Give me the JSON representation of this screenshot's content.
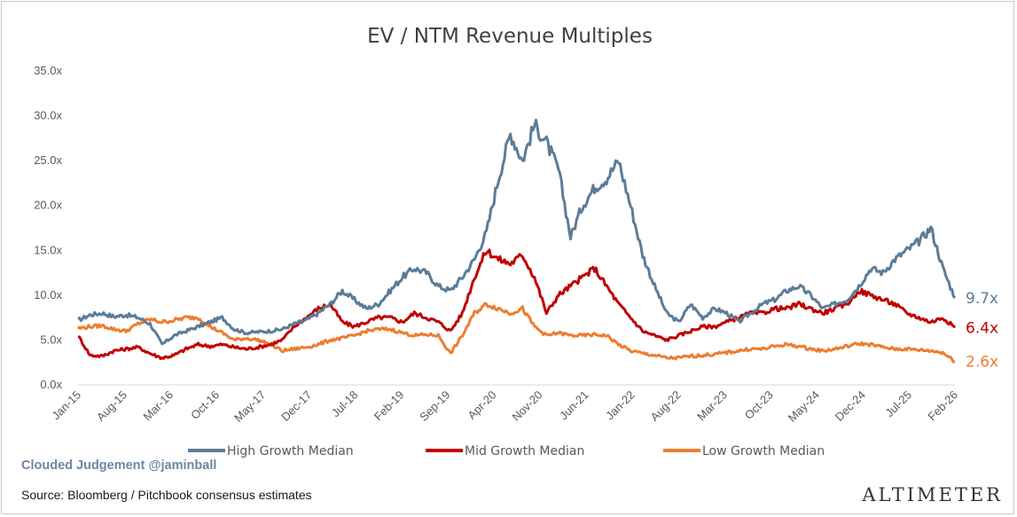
{
  "chart_data": {
    "type": "line",
    "title": "EV / NTM Revenue Multiples",
    "x_tick_labels": [
      "Jan-15",
      "Aug-15",
      "Mar-16",
      "Oct-16",
      "May-17",
      "Dec-17",
      "Jul-18",
      "Feb-19",
      "Sep-19",
      "Apr-20",
      "Nov-20",
      "Jun-21",
      "Jan-22",
      "Aug-22",
      "Mar-23",
      "Oct-23",
      "May-24",
      "Dec-24",
      "Jul-25",
      "Feb-26"
    ],
    "y_tick_labels": [
      "0.0x",
      "5.0x",
      "10.0x",
      "15.0x",
      "20.0x",
      "25.0x",
      "30.0x",
      "35.0x"
    ],
    "ylim": [
      0,
      35
    ],
    "legend_position": "bottom",
    "series": [
      {
        "name": "High Growth Median",
        "color": "#5b7c99",
        "end_label": "9.7x",
        "values": [
          7.2,
          7.8,
          8.0,
          7.6,
          7.8,
          7.5,
          6.8,
          4.5,
          5.5,
          6.0,
          6.5,
          7.0,
          7.5,
          6.2,
          5.8,
          5.9,
          6.0,
          6.2,
          6.8,
          7.2,
          8.0,
          9.0,
          10.5,
          9.5,
          8.5,
          9.0,
          10.5,
          12.0,
          13.0,
          12.5,
          11.0,
          10.5,
          12.0,
          14.0,
          17.0,
          23.0,
          28.0,
          25.0,
          29.0,
          27.0,
          24.0,
          16.5,
          20.0,
          22.0,
          23.0,
          25.0,
          20.0,
          14.5,
          11.0,
          8.0,
          7.0,
          9.0,
          7.5,
          8.5,
          8.0,
          7.0,
          8.0,
          9.0,
          9.5,
          10.5,
          11.0,
          10.0,
          8.5,
          9.0,
          9.5,
          11.0,
          13.0,
          12.5,
          14.0,
          15.0,
          16.0,
          17.5,
          13.0,
          9.7
        ]
      },
      {
        "name": "Mid Growth Median",
        "color": "#c00000",
        "end_label": "6.4x",
        "values": [
          5.5,
          3.3,
          3.2,
          3.8,
          4.0,
          4.2,
          3.5,
          3.0,
          3.3,
          4.0,
          4.5,
          4.3,
          4.5,
          4.2,
          4.0,
          4.2,
          4.5,
          5.0,
          6.5,
          7.5,
          8.5,
          9.0,
          7.0,
          6.5,
          7.0,
          7.5,
          7.5,
          7.0,
          8.0,
          7.5,
          7.0,
          6.0,
          8.0,
          12.0,
          15.0,
          14.0,
          13.5,
          14.5,
          12.0,
          8.0,
          10.0,
          11.0,
          12.0,
          13.0,
          11.0,
          9.0,
          7.5,
          6.0,
          5.5,
          5.0,
          5.5,
          6.0,
          6.5,
          6.5,
          7.0,
          7.5,
          8.0,
          8.0,
          8.5,
          8.5,
          9.0,
          8.5,
          8.0,
          8.5,
          9.0,
          10.5,
          10.0,
          9.5,
          9.0,
          8.0,
          7.5,
          7.0,
          7.5,
          6.4
        ]
      },
      {
        "name": "Low Growth Median",
        "color": "#ed7d31",
        "end_label": "2.6x",
        "values": [
          6.3,
          6.5,
          6.6,
          6.2,
          6.0,
          6.8,
          7.3,
          7.0,
          7.2,
          7.5,
          7.5,
          6.5,
          5.8,
          5.0,
          5.2,
          5.0,
          4.5,
          3.8,
          4.0,
          4.2,
          4.5,
          5.0,
          5.2,
          5.5,
          6.0,
          6.2,
          6.2,
          5.8,
          5.5,
          5.6,
          5.5,
          3.5,
          5.5,
          8.0,
          9.0,
          8.5,
          8.0,
          8.5,
          6.5,
          5.5,
          5.8,
          5.5,
          5.5,
          5.6,
          5.5,
          4.5,
          3.8,
          3.5,
          3.3,
          3.0,
          3.0,
          3.2,
          3.3,
          3.4,
          3.6,
          3.8,
          4.0,
          4.0,
          4.3,
          4.5,
          4.3,
          4.0,
          3.8,
          4.0,
          4.3,
          4.6,
          4.5,
          4.2,
          4.0,
          4.0,
          3.9,
          3.8,
          3.6,
          2.6
        ]
      }
    ]
  },
  "footer": {
    "credit": "Clouded Judgement @jaminball",
    "source": "Source: Bloomberg / Pitchbook consensus estimates",
    "brand": "ALTIMETER"
  }
}
